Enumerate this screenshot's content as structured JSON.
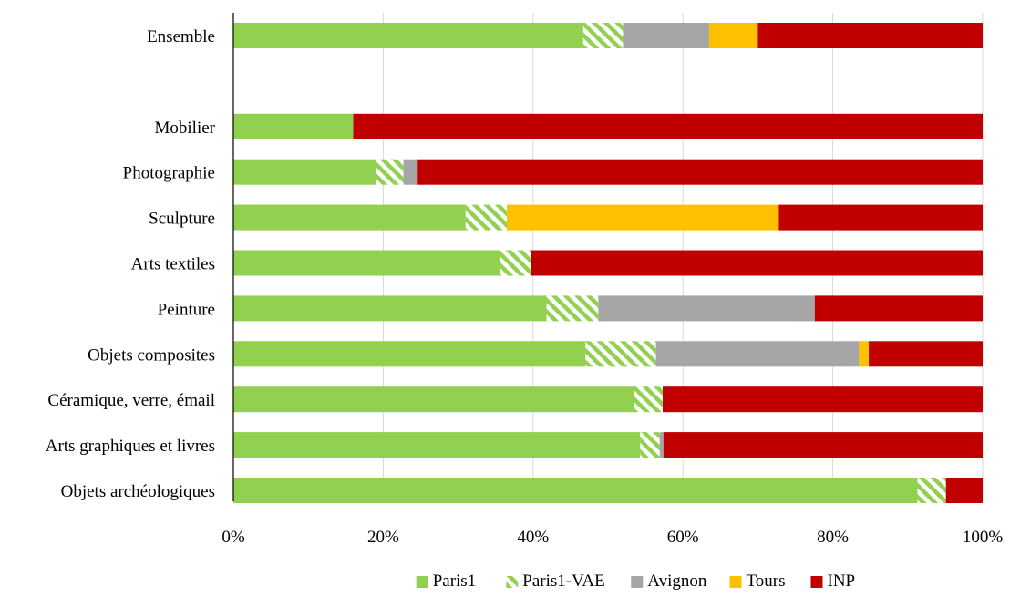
{
  "chart_data": {
    "type": "bar",
    "orientation": "horizontal",
    "stacked": true,
    "percent_scale": true,
    "categories": [
      "Ensemble",
      "",
      "Mobilier",
      "Photographie",
      "Sculpture",
      "Arts textiles",
      "Peinture",
      "Objets composites",
      "Céramique, verre, émail",
      "Arts graphiques et livres",
      "Objets archéologiques"
    ],
    "series": [
      {
        "name": "Paris1",
        "color": "#92d050",
        "pattern": "solid",
        "values": [
          46.7,
          null,
          16.0,
          19.0,
          31.0,
          35.6,
          41.8,
          47.0,
          53.5,
          54.3,
          91.3
        ]
      },
      {
        "name": "Paris1-VAE",
        "color": "#92d050",
        "pattern": "hatched",
        "values": [
          5.3,
          null,
          0.0,
          3.7,
          5.5,
          4.1,
          6.9,
          9.4,
          3.8,
          2.6,
          3.8
        ]
      },
      {
        "name": "Avignon",
        "color": "#a6a6a6",
        "pattern": "solid",
        "values": [
          11.5,
          null,
          0.0,
          1.9,
          0.0,
          0.0,
          28.9,
          27.1,
          0.0,
          0.5,
          0.0
        ]
      },
      {
        "name": "Tours",
        "color": "#ffc000",
        "pattern": "solid",
        "values": [
          6.5,
          null,
          0.0,
          0.0,
          36.3,
          0.0,
          0.0,
          1.3,
          0.0,
          0.0,
          0.0
        ]
      },
      {
        "name": "INP",
        "color": "#c00000",
        "pattern": "solid",
        "values": [
          30.0,
          null,
          84.0,
          75.4,
          27.2,
          60.3,
          22.4,
          15.2,
          42.7,
          42.6,
          4.9
        ]
      }
    ],
    "x_ticks": [
      "0%",
      "20%",
      "40%",
      "60%",
      "80%",
      "100%"
    ],
    "xlim": [
      0,
      100
    ],
    "title": "",
    "xlabel": "",
    "ylabel": "",
    "grid": "vertical",
    "legend": "bottom"
  }
}
